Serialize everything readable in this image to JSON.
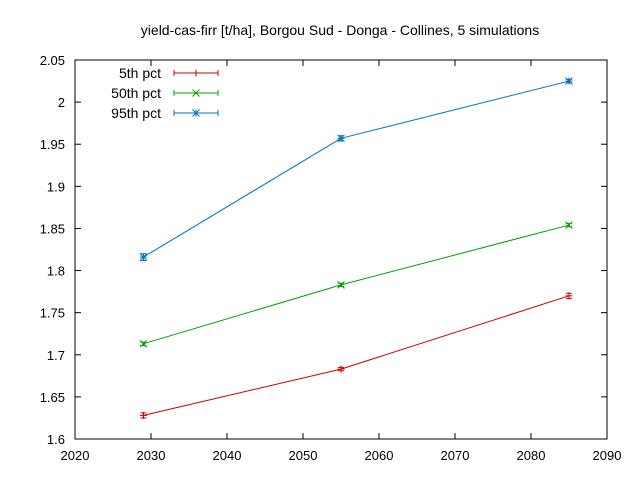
{
  "chart_data": {
    "type": "line",
    "title": "yield-cas-firr [t/ha], Borgou Sud - Donga - Collines, 5 simulations",
    "xlabel": "",
    "ylabel": "",
    "xlim": [
      2020,
      2090
    ],
    "ylim": [
      1.6,
      2.05
    ],
    "x_ticks": [
      2020,
      2030,
      2040,
      2050,
      2060,
      2070,
      2080,
      2090
    ],
    "y_ticks": [
      1.6,
      1.65,
      1.7,
      1.75,
      1.8,
      1.85,
      1.9,
      1.95,
      2.0,
      2.05
    ],
    "y_tick_labels": [
      "1.6",
      "1.65",
      "1.7",
      "1.75",
      "1.8",
      "1.85",
      "1.9",
      "1.95",
      "2",
      "2.05"
    ],
    "grid": false,
    "legend_position": "top-left",
    "x": [
      2029,
      2055,
      2085
    ],
    "series": [
      {
        "name": "5th pct",
        "color": "#cc0000",
        "marker": "plus",
        "values": [
          1.628,
          1.683,
          1.77
        ],
        "error": [
          0.003,
          0.002,
          0.003
        ]
      },
      {
        "name": "50th pct",
        "color": "#00a000",
        "marker": "cross",
        "values": [
          1.713,
          1.783,
          1.854
        ],
        "error": [
          0.002,
          0.002,
          0.002
        ]
      },
      {
        "name": "95th pct",
        "color": "#0070c0",
        "marker": "star",
        "values": [
          1.816,
          1.957,
          2.025
        ],
        "error": [
          0.004,
          0.003,
          0.002
        ]
      }
    ]
  }
}
